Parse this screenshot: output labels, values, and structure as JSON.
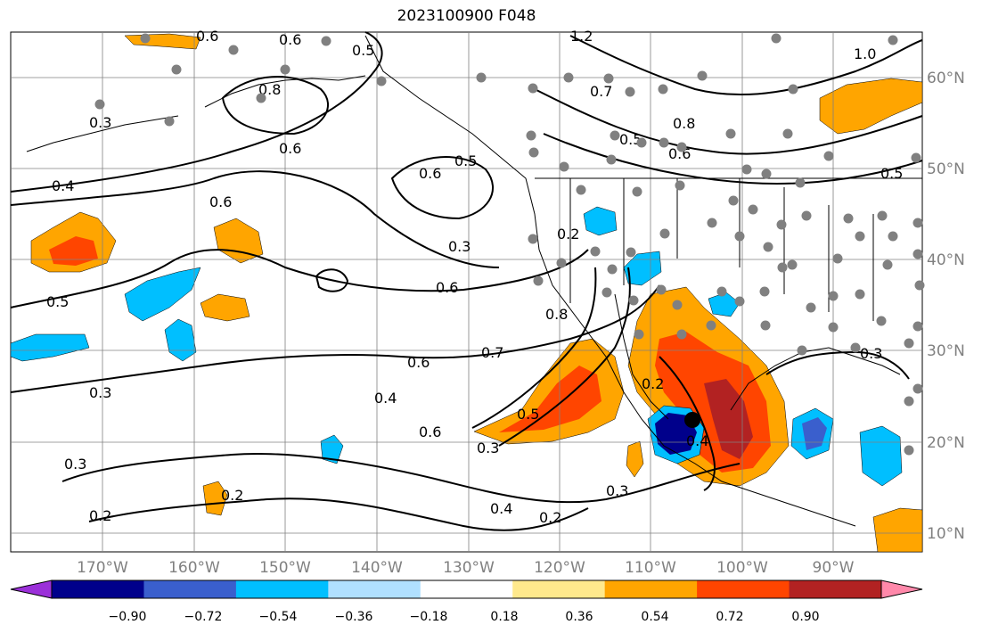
{
  "title": "2023100900 F048",
  "map": {
    "lon_ticks": [
      "170°W",
      "160°W",
      "150°W",
      "140°W",
      "130°W",
      "120°W",
      "110°W",
      "100°W",
      "90°W"
    ],
    "lat_ticks": [
      "60°N",
      "50°N",
      "40°N",
      "30°N",
      "20°N",
      "10°N"
    ],
    "lon_range": [
      -180,
      -80
    ],
    "lat_range": [
      7,
      65
    ]
  },
  "colorbar": {
    "tick_labels": [
      "−0.90",
      "−0.72",
      "−0.54",
      "−0.36",
      "−0.18",
      "0.18",
      "0.36",
      "0.54",
      "0.72",
      "0.90"
    ],
    "colors": [
      "#9b30d9",
      "#00008b",
      "#3a5fcd",
      "#00bfff",
      "#b0e0ff",
      "#ffffff",
      "#ffe98c",
      "#ffa500",
      "#ff4500",
      "#b22222",
      "#ff88aa"
    ]
  },
  "contour_labels": [
    "0.6",
    "0.6",
    "0.5",
    "1.2",
    "1.0",
    "0.8",
    "0.3",
    "0.7",
    "0.8",
    "0.5",
    "0.6",
    "0.4",
    "0.6",
    "0.6",
    "0.5",
    "0.6",
    "0.3",
    "0.5",
    "0.6",
    "0.8",
    "0.7",
    "0.6",
    "0.4",
    "0.5",
    "0.6",
    "0.3",
    "0.2",
    "0.2",
    "0.4",
    "0.2",
    "0.3",
    "0.3",
    "0.2",
    "0.4",
    "0.3",
    "0.3",
    "0.2",
    "0.5"
  ],
  "colors": {
    "land_line": "#000000",
    "grid": "#808080",
    "station_dot": "#808080",
    "storm_center": "#000000"
  }
}
